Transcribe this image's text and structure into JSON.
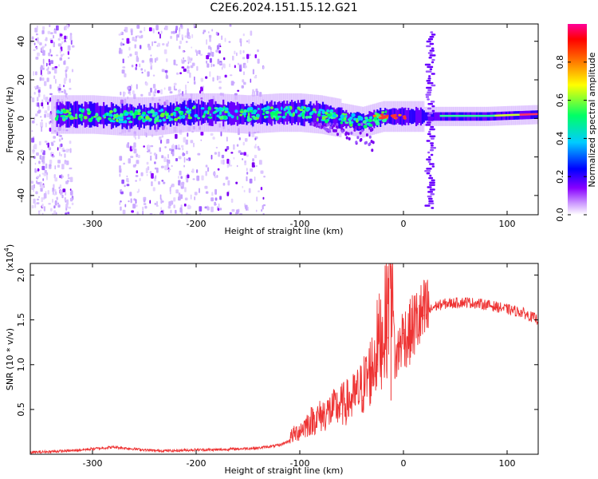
{
  "title": "C2E6.2024.151.15.12.G21",
  "chart_data": [
    {
      "type": "heatmap",
      "xlabel": "Height of straight line (km)",
      "ylabel": "Frequency (Hz)",
      "xlim": [
        -360,
        130
      ],
      "ylim": [
        -50,
        49
      ],
      "x_ticks": [
        -300,
        -200,
        -100,
        0,
        100
      ],
      "y_ticks": [
        -40,
        -20,
        0,
        20,
        40
      ],
      "colorbar": {
        "label": "Normalized spectral amplitude",
        "range": [
          0,
          1
        ],
        "ticks": [
          "0.0",
          "0.2",
          "0.4",
          "0.6",
          "0.8"
        ],
        "tick_values": [
          0,
          0.2,
          0.4,
          0.6,
          0.8
        ],
        "colormap": [
          "#ffffff",
          "#cc99ff",
          "#8800ff",
          "#0000ff",
          "#00ccff",
          "#00ff66",
          "#ffff00",
          "#ff6600",
          "#ff0000",
          "#ff0099"
        ]
      },
      "band_center": [
        [
          -330,
          2
        ],
        [
          -300,
          2
        ],
        [
          -270,
          1
        ],
        [
          -240,
          1
        ],
        [
          -210,
          3
        ],
        [
          -180,
          3
        ],
        [
          -150,
          2
        ],
        [
          -120,
          3
        ],
        [
          -100,
          3
        ],
        [
          -80,
          2
        ],
        [
          -60,
          0
        ],
        [
          -40,
          -2
        ],
        [
          -20,
          1
        ],
        [
          0,
          1
        ],
        [
          20,
          1
        ],
        [
          40,
          1
        ],
        [
          80,
          1
        ],
        [
          130,
          2
        ]
      ],
      "dominant_colors": [
        "#00ff66",
        "#00ccff",
        "#0000ff",
        "#8800ff",
        "#ff3366"
      ]
    },
    {
      "type": "line",
      "xlabel": "Height of straight line (km)",
      "ylabel": "SNR (10 * v/v)",
      "y_multiplier_label": "(x10",
      "y_multiplier_exp": "4",
      "xlim": [
        -360,
        130
      ],
      "ylim": [
        0,
        2.13
      ],
      "x_ticks": [
        -300,
        -200,
        -100,
        0,
        100
      ],
      "y_ticks": [
        0.5,
        1.0,
        1.5,
        2.0
      ],
      "y_tick_labels": [
        "0.5",
        "1.0",
        "1.5",
        "2.0"
      ],
      "series": [
        {
          "color": "#ee3333",
          "x": [
            -360,
            -340,
            -320,
            -300,
            -280,
            -260,
            -240,
            -220,
            -200,
            -180,
            -160,
            -140,
            -120,
            -110,
            -100,
            -90,
            -80,
            -70,
            -60,
            -50,
            -40,
            -30,
            -25,
            -20,
            -15,
            -12,
            -8,
            -4,
            0,
            4,
            10,
            20,
            30,
            40,
            60,
            80,
            100,
            115,
            130
          ],
          "y": [
            0.02,
            0.03,
            0.04,
            0.06,
            0.08,
            0.06,
            0.04,
            0.04,
            0.05,
            0.05,
            0.06,
            0.07,
            0.1,
            0.15,
            0.22,
            0.3,
            0.35,
            0.4,
            0.45,
            0.5,
            0.6,
            0.8,
            1.0,
            1.1,
            1.3,
            2.1,
            1.0,
            1.2,
            1.35,
            1.3,
            1.45,
            1.55,
            1.65,
            1.68,
            1.7,
            1.67,
            1.62,
            1.58,
            1.5
          ]
        }
      ]
    }
  ]
}
